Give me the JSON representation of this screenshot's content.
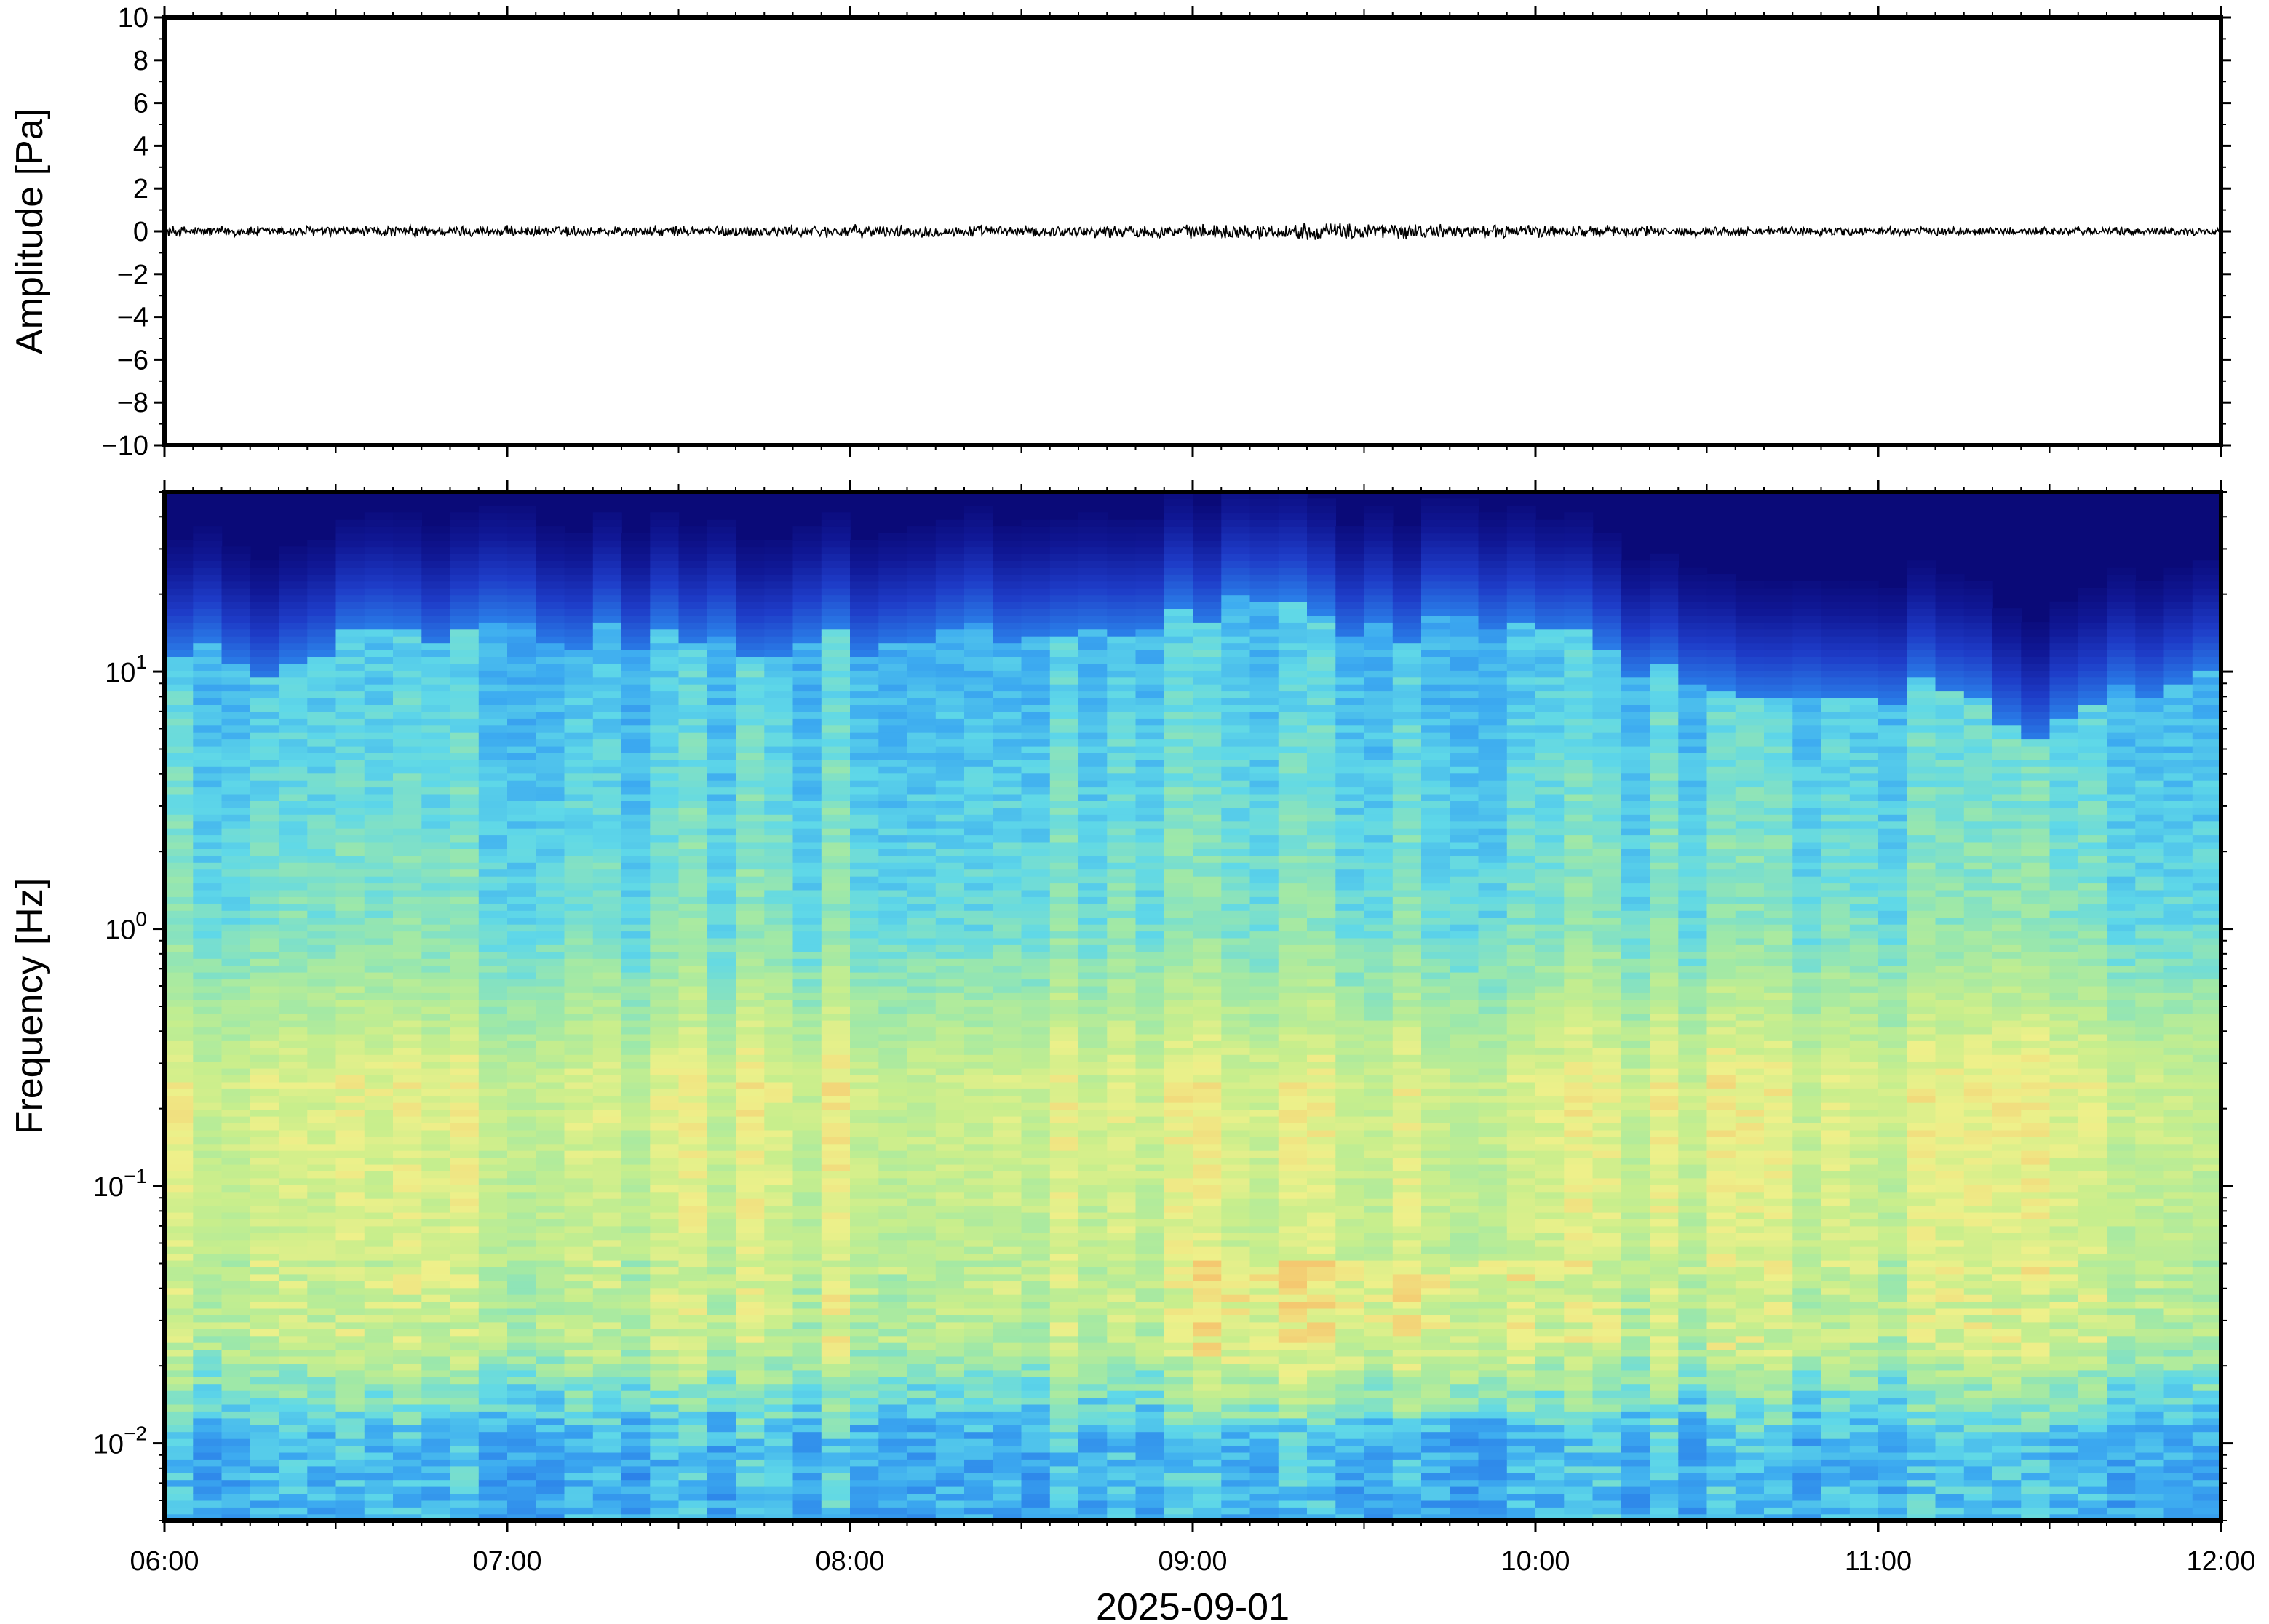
{
  "chart_data": [
    {
      "type": "line",
      "panel": "waveform",
      "title": "",
      "xlabel": "",
      "ylabel": "Amplitude [Pa]",
      "ylim": [
        -10,
        10
      ],
      "yticks": [
        10,
        8,
        6,
        4,
        2,
        0,
        -2,
        -4,
        -6,
        -8,
        -10
      ],
      "ytick_labels": [
        "10",
        "8",
        "6",
        "4",
        "2",
        "0",
        "−2",
        "−4",
        "−6",
        "−8",
        "−10"
      ],
      "xlim": [
        "2025-09-01 06:00",
        "2025-09-01 12:00"
      ],
      "grid": false,
      "series": [
        {
          "color": "#000000",
          "x": [
            "06:00",
            "06:30",
            "07:00",
            "07:30",
            "08:00",
            "08:30",
            "09:00",
            "09:15",
            "09:30",
            "09:45",
            "10:00",
            "10:30",
            "11:00",
            "11:30",
            "12:00"
          ],
          "envelope_pa": [
            0.25,
            0.25,
            0.25,
            0.25,
            0.28,
            0.25,
            0.3,
            0.35,
            0.4,
            0.3,
            0.3,
            0.22,
            0.2,
            0.2,
            0.2
          ]
        }
      ]
    },
    {
      "type": "heatmap",
      "panel": "spectrogram",
      "title": "",
      "xlabel": "2025-09-01",
      "ylabel": "Frequency [Hz]",
      "yscale": "log",
      "ylim": [
        0.005,
        50
      ],
      "yticks": [
        0.01,
        0.1,
        1,
        10
      ],
      "ytick_labels": [
        {
          "base": "10",
          "exp": "−2"
        },
        {
          "base": "10",
          "exp": "−1"
        },
        {
          "base": "10",
          "exp": "0"
        },
        {
          "base": "10",
          "exp": "1"
        }
      ],
      "xlim": [
        "2025-09-01 06:00",
        "2025-09-01 12:00"
      ],
      "xticks": [
        "06:00",
        "07:00",
        "08:00",
        "09:00",
        "10:00",
        "11:00",
        "12:00"
      ],
      "colormap": "jet-like",
      "colors": {
        "low": "#0a0a78",
        "mid_blue": "#2a7ee8",
        "cyan": "#5fd8e8",
        "green": "#9ee8a8",
        "yellow": "#eef08a",
        "orange": "#f4c870"
      },
      "upper_cutoff_hz_by_time": {
        "x": [
          "06:00",
          "06:15",
          "06:30",
          "07:00",
          "07:30",
          "08:00",
          "08:30",
          "09:00",
          "09:15",
          "09:30",
          "10:00",
          "10:30",
          "11:00",
          "11:30",
          "11:45",
          "12:00"
        ],
        "hz": [
          14,
          10,
          13,
          14,
          13,
          13,
          14,
          16,
          18,
          15,
          14,
          9,
          9,
          6,
          8,
          12
        ]
      }
    }
  ]
}
